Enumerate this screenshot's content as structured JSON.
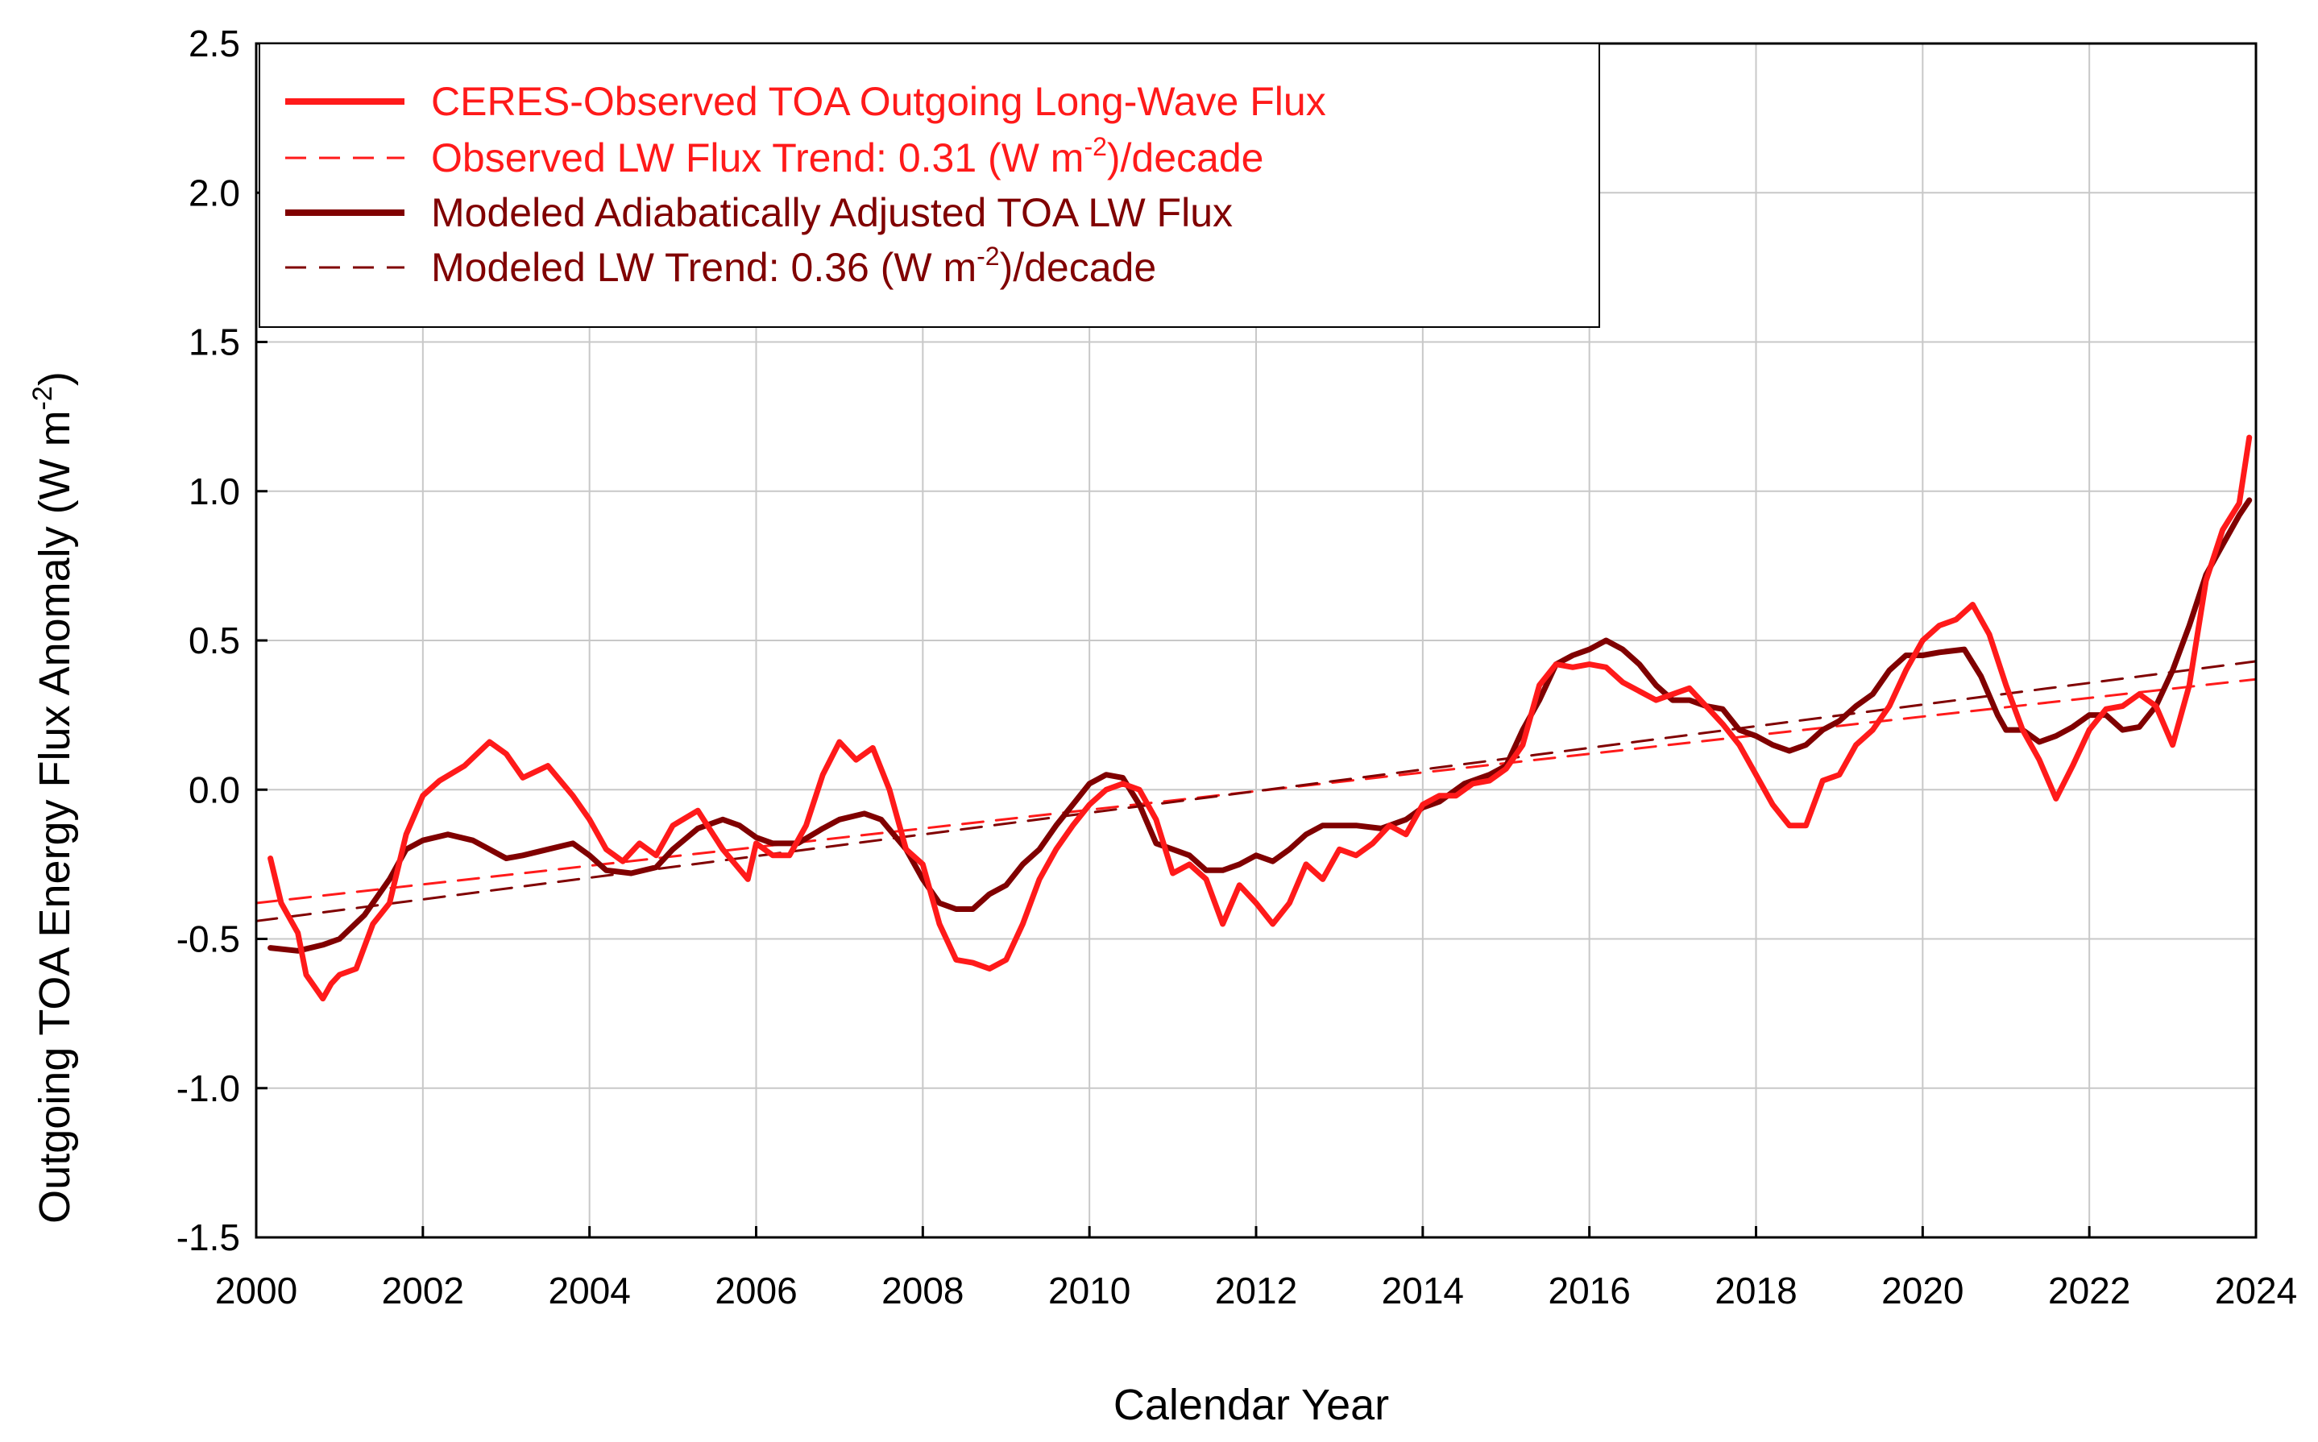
{
  "chart_data": {
    "type": "line",
    "title": "",
    "xlabel": "Calendar Year",
    "ylabel": "Outgoing TOA Energy Flux Anomaly (W m",
    "ylabel_sup": "-2",
    "ylabel_end": ")",
    "xlim": [
      2000,
      2024
    ],
    "ylim": [
      -1.5,
      2.5
    ],
    "grid": true,
    "legend_position": "top-left",
    "x_ticks": [
      "2000",
      "2002",
      "2004",
      "2006",
      "2008",
      "2010",
      "2012",
      "2014",
      "2016",
      "2018",
      "2020",
      "2022",
      "2024"
    ],
    "y_ticks": [
      "-1.5",
      "-1.0",
      "-0.5",
      "0.0",
      "0.5",
      "1.0",
      "1.5",
      "2.0",
      "2.5"
    ],
    "colors": {
      "observed": "#ff1a1a",
      "modeled": "#800000"
    },
    "series": [
      {
        "name": "CERES-Observed TOA Outgoing Long-Wave Flux",
        "style": "solid-thick",
        "color": "#ff1a1a",
        "x": [
          2000.17,
          2000.3,
          2000.5,
          2000.6,
          2000.8,
          2000.9,
          2001.0,
          2001.2,
          2001.4,
          2001.6,
          2001.8,
          2002.0,
          2002.2,
          2002.5,
          2002.8,
          2003.0,
          2003.2,
          2003.5,
          2003.8,
          2004.0,
          2004.2,
          2004.4,
          2004.6,
          2004.8,
          2005.0,
          2005.3,
          2005.6,
          2005.9,
          2006.0,
          2006.2,
          2006.4,
          2006.6,
          2006.8,
          2007.0,
          2007.2,
          2007.4,
          2007.6,
          2007.8,
          2008.0,
          2008.2,
          2008.4,
          2008.6,
          2008.8,
          2009.0,
          2009.2,
          2009.4,
          2009.6,
          2009.8,
          2010.0,
          2010.2,
          2010.4,
          2010.6,
          2010.8,
          2011.0,
          2011.2,
          2011.4,
          2011.6,
          2011.8,
          2012.0,
          2012.2,
          2012.4,
          2012.6,
          2012.8,
          2013.0,
          2013.2,
          2013.4,
          2013.6,
          2013.8,
          2014.0,
          2014.2,
          2014.4,
          2014.6,
          2014.8,
          2015.0,
          2015.2,
          2015.4,
          2015.6,
          2015.8,
          2016.0,
          2016.2,
          2016.4,
          2016.6,
          2016.8,
          2017.0,
          2017.2,
          2017.4,
          2017.6,
          2017.8,
          2018.0,
          2018.2,
          2018.4,
          2018.6,
          2018.8,
          2019.0,
          2019.2,
          2019.4,
          2019.6,
          2019.8,
          2020.0,
          2020.2,
          2020.4,
          2020.6,
          2020.8,
          2021.0,
          2021.2,
          2021.4,
          2021.6,
          2021.8,
          2022.0,
          2022.2,
          2022.4,
          2022.6,
          2022.8,
          2023.0,
          2023.2,
          2023.4,
          2023.6,
          2023.8,
          2023.92
        ],
        "y": [
          -0.23,
          -0.38,
          -0.48,
          -0.62,
          -0.7,
          -0.65,
          -0.62,
          -0.6,
          -0.45,
          -0.38,
          -0.15,
          -0.02,
          0.03,
          0.08,
          0.16,
          0.12,
          0.04,
          0.08,
          -0.02,
          -0.1,
          -0.2,
          -0.24,
          -0.18,
          -0.22,
          -0.12,
          -0.07,
          -0.2,
          -0.3,
          -0.18,
          -0.22,
          -0.22,
          -0.12,
          0.05,
          0.16,
          0.1,
          0.14,
          0.0,
          -0.2,
          -0.25,
          -0.45,
          -0.57,
          -0.58,
          -0.6,
          -0.57,
          -0.45,
          -0.3,
          -0.2,
          -0.12,
          -0.05,
          0.0,
          0.02,
          0.0,
          -0.1,
          -0.28,
          -0.25,
          -0.3,
          -0.45,
          -0.32,
          -0.38,
          -0.45,
          -0.38,
          -0.25,
          -0.3,
          -0.2,
          -0.22,
          -0.18,
          -0.12,
          -0.15,
          -0.05,
          -0.02,
          -0.02,
          0.02,
          0.03,
          0.07,
          0.15,
          0.35,
          0.42,
          0.41,
          0.42,
          0.41,
          0.36,
          0.33,
          0.3,
          0.32,
          0.34,
          0.28,
          0.22,
          0.15,
          0.05,
          -0.05,
          -0.12,
          -0.12,
          0.03,
          0.05,
          0.15,
          0.2,
          0.28,
          0.4,
          0.5,
          0.55,
          0.57,
          0.62,
          0.52,
          0.35,
          0.2,
          0.1,
          -0.03,
          0.08,
          0.2,
          0.27,
          0.28,
          0.32,
          0.28,
          0.15,
          0.35,
          0.7,
          0.87,
          0.96,
          1.18
        ]
      },
      {
        "name": "Observed LW Flux Trend: 0.31 (W m-2)/decade",
        "label_prefix": "Observed LW Flux Trend: 0.31 (W m",
        "label_sup": "-2",
        "label_suffix": ")/decade",
        "style": "dashed-thin",
        "color": "#ff1a1a",
        "x": [
          2000,
          2024
        ],
        "y": [
          -0.38,
          0.37
        ]
      },
      {
        "name": "Modeled Adiabatically Adjusted TOA LW Flux",
        "style": "solid-thick",
        "color": "#800000",
        "x": [
          2000.17,
          2000.5,
          2000.8,
          2001.0,
          2001.3,
          2001.6,
          2001.8,
          2002.0,
          2002.3,
          2002.6,
          2002.8,
          2003.0,
          2003.2,
          2003.5,
          2003.8,
          2004.0,
          2004.2,
          2004.5,
          2004.8,
          2005.0,
          2005.3,
          2005.6,
          2005.8,
          2006.0,
          2006.2,
          2006.5,
          2006.8,
          2007.0,
          2007.3,
          2007.5,
          2007.8,
          2008.0,
          2008.2,
          2008.4,
          2008.6,
          2008.8,
          2009.0,
          2009.2,
          2009.4,
          2009.6,
          2009.8,
          2010.0,
          2010.2,
          2010.4,
          2010.6,
          2010.8,
          2011.0,
          2011.2,
          2011.4,
          2011.6,
          2011.8,
          2012.0,
          2012.2,
          2012.4,
          2012.6,
          2012.8,
          2013.0,
          2013.2,
          2013.5,
          2013.8,
          2014.0,
          2014.2,
          2014.5,
          2014.8,
          2015.0,
          2015.2,
          2015.4,
          2015.6,
          2015.8,
          2016.0,
          2016.2,
          2016.4,
          2016.6,
          2016.8,
          2017.0,
          2017.2,
          2017.4,
          2017.6,
          2017.8,
          2018.0,
          2018.2,
          2018.4,
          2018.6,
          2018.8,
          2019.0,
          2019.2,
          2019.4,
          2019.6,
          2019.8,
          2020.0,
          2020.2,
          2020.5,
          2020.7,
          2020.9,
          2021.0,
          2021.2,
          2021.4,
          2021.6,
          2021.8,
          2022.0,
          2022.2,
          2022.4,
          2022.6,
          2022.8,
          2023.0,
          2023.2,
          2023.4,
          2023.6,
          2023.8,
          2023.92
        ],
        "y": [
          -0.53,
          -0.54,
          -0.52,
          -0.5,
          -0.42,
          -0.3,
          -0.2,
          -0.17,
          -0.15,
          -0.17,
          -0.2,
          -0.23,
          -0.22,
          -0.2,
          -0.18,
          -0.22,
          -0.27,
          -0.28,
          -0.26,
          -0.2,
          -0.13,
          -0.1,
          -0.12,
          -0.16,
          -0.18,
          -0.18,
          -0.13,
          -0.1,
          -0.08,
          -0.1,
          -0.2,
          -0.3,
          -0.38,
          -0.4,
          -0.4,
          -0.35,
          -0.32,
          -0.25,
          -0.2,
          -0.12,
          -0.05,
          0.02,
          0.05,
          0.04,
          -0.05,
          -0.18,
          -0.2,
          -0.22,
          -0.27,
          -0.27,
          -0.25,
          -0.22,
          -0.24,
          -0.2,
          -0.15,
          -0.12,
          -0.12,
          -0.12,
          -0.13,
          -0.1,
          -0.06,
          -0.04,
          0.02,
          0.05,
          0.08,
          0.2,
          0.3,
          0.42,
          0.45,
          0.47,
          0.5,
          0.47,
          0.42,
          0.35,
          0.3,
          0.3,
          0.28,
          0.27,
          0.2,
          0.18,
          0.15,
          0.13,
          0.15,
          0.2,
          0.23,
          0.28,
          0.32,
          0.4,
          0.45,
          0.45,
          0.46,
          0.47,
          0.38,
          0.25,
          0.2,
          0.2,
          0.16,
          0.18,
          0.21,
          0.25,
          0.25,
          0.2,
          0.21,
          0.28,
          0.4,
          0.55,
          0.72,
          0.82,
          0.92,
          0.97
        ]
      },
      {
        "name": "Modeled LW Trend: 0.36 (W m-2)/decade",
        "label_prefix": "Modeled LW Trend: 0.36 (W m",
        "label_sup": "-2",
        "label_suffix": ")/decade",
        "style": "dashed-thin",
        "color": "#800000",
        "x": [
          2000,
          2024
        ],
        "y": [
          -0.44,
          0.43
        ]
      }
    ]
  }
}
